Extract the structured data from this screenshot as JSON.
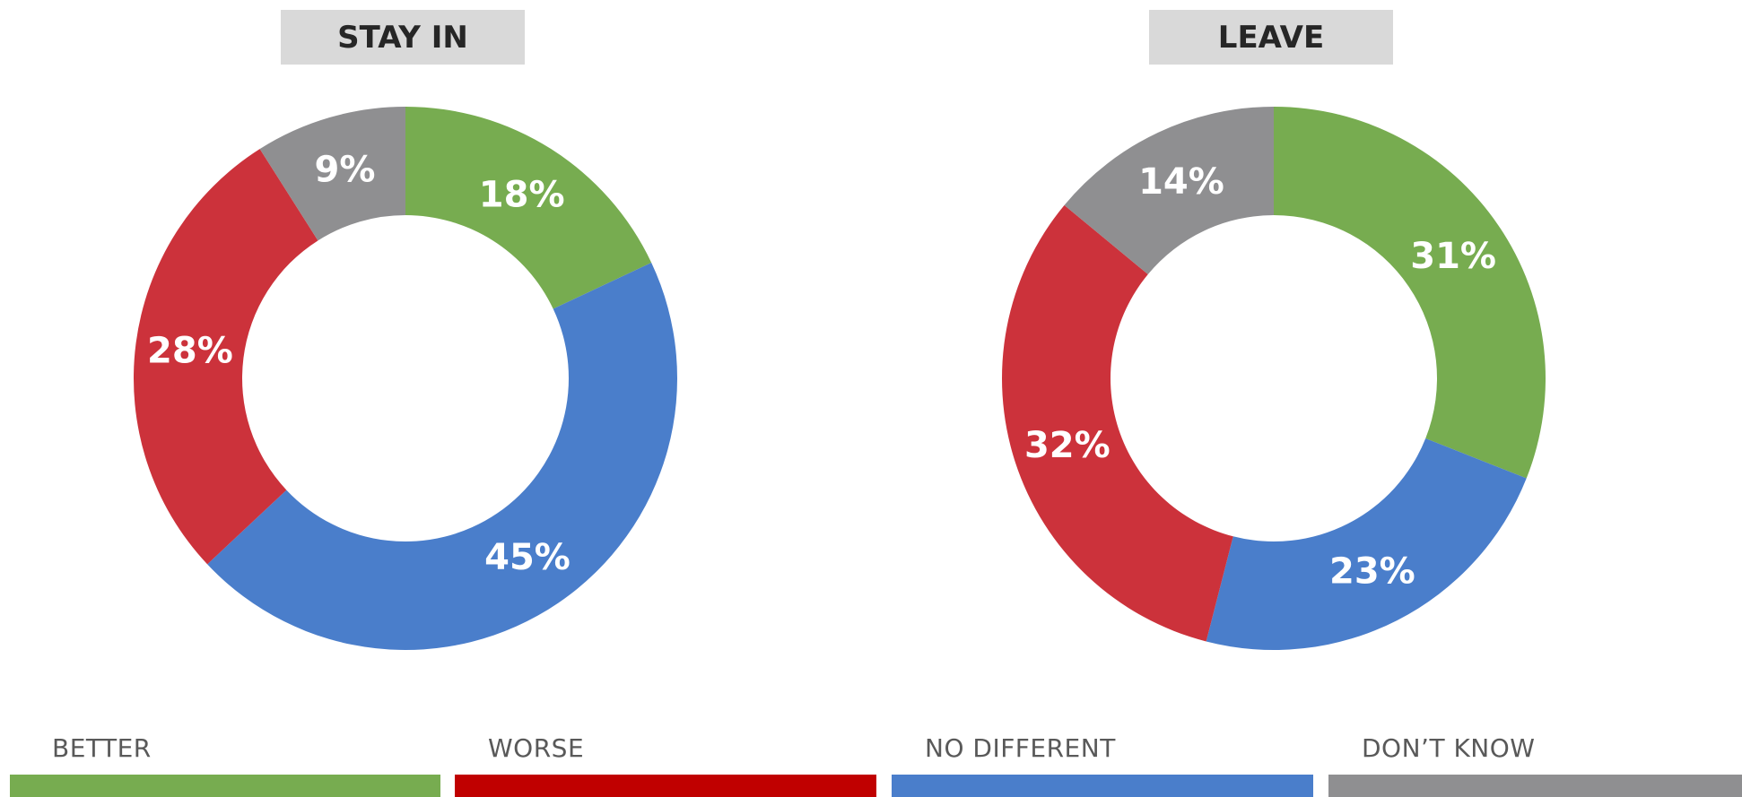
{
  "chart_data": [
    {
      "type": "pie",
      "title": "STAY IN",
      "categories": [
        "BETTER",
        "NO DIFFERENT",
        "WORSE",
        "DON’T KNOW"
      ],
      "values": [
        18,
        45,
        28,
        9
      ],
      "labels": [
        "18%",
        "45%",
        "28%",
        "9%"
      ]
    },
    {
      "type": "pie",
      "title": "LEAVE",
      "categories": [
        "BETTER",
        "NO DIFFERENT",
        "WORSE",
        "DON’T KNOW"
      ],
      "values": [
        31,
        23,
        32,
        14
      ],
      "labels": [
        "31%",
        "23%",
        "32%",
        "14%"
      ]
    }
  ],
  "legend": [
    {
      "label": "BETTER",
      "color": "#77ac50"
    },
    {
      "label": "WORSE",
      "color": "#c00000"
    },
    {
      "label": "NO DIFFERENT",
      "color": "#4a7ecb"
    },
    {
      "label": "DON’T KNOW",
      "color": "#8f8f91"
    }
  ],
  "colors": {
    "BETTER": "#77ac50",
    "NO DIFFERENT": "#4a7ecb",
    "WORSE": "#cc323b",
    "DON’T KNOW": "#8f8f91"
  }
}
